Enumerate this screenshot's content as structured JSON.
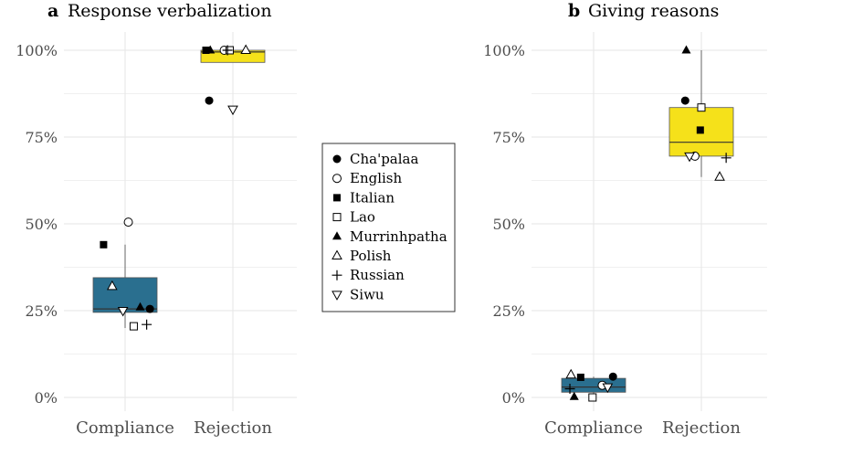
{
  "chart_data": [
    {
      "type": "box",
      "panel": "a",
      "title": "Response verbalization",
      "categories": [
        "Compliance",
        "Rejection"
      ],
      "y_ticks": [
        "0%",
        "25%",
        "50%",
        "75%",
        "100%"
      ],
      "ylim": [
        0,
        1
      ],
      "boxes": [
        {
          "category": "Compliance",
          "min": 0.2,
          "q1": 0.245,
          "median": 0.255,
          "q3": 0.345,
          "max": 0.44,
          "fill": "#2a6f8f"
        },
        {
          "category": "Rejection",
          "min": 0.965,
          "q1": 0.965,
          "median": 0.995,
          "q3": 1.0,
          "max": 1.0,
          "fill": "#f5e11a"
        }
      ],
      "points": [
        {
          "language": "Cha'palaa",
          "category": "Compliance",
          "jitter": 0.23,
          "value": 0.255
        },
        {
          "language": "English",
          "category": "Compliance",
          "jitter": 0.03,
          "value": 0.505
        },
        {
          "language": "Italian",
          "category": "Compliance",
          "jitter": -0.2,
          "value": 0.44
        },
        {
          "language": "Lao",
          "category": "Compliance",
          "jitter": 0.08,
          "value": 0.205
        },
        {
          "language": "Murrinhpatha",
          "category": "Compliance",
          "jitter": 0.14,
          "value": 0.26
        },
        {
          "language": "Polish",
          "category": "Compliance",
          "jitter": -0.12,
          "value": 0.32
        },
        {
          "language": "Russian",
          "category": "Compliance",
          "jitter": 0.2,
          "value": 0.21
        },
        {
          "language": "Siwu",
          "category": "Compliance",
          "jitter": -0.02,
          "value": 0.25
        },
        {
          "language": "Cha'palaa",
          "category": "Rejection",
          "jitter": -0.22,
          "value": 0.855
        },
        {
          "language": "English",
          "category": "Rejection",
          "jitter": -0.08,
          "value": 1.0
        },
        {
          "language": "Italian",
          "category": "Rejection",
          "jitter": -0.25,
          "value": 1.0
        },
        {
          "language": "Lao",
          "category": "Rejection",
          "jitter": -0.03,
          "value": 1.0
        },
        {
          "language": "Murrinhpatha",
          "category": "Rejection",
          "jitter": -0.21,
          "value": 1.0
        },
        {
          "language": "Polish",
          "category": "Rejection",
          "jitter": 0.12,
          "value": 1.0
        },
        {
          "language": "Russian",
          "category": "Rejection",
          "jitter": -0.05,
          "value": 1.0
        },
        {
          "language": "Siwu",
          "category": "Rejection",
          "jitter": 0.0,
          "value": 0.83
        }
      ]
    },
    {
      "type": "box",
      "panel": "b",
      "title": "Giving reasons",
      "categories": [
        "Compliance",
        "Rejection"
      ],
      "y_ticks": [
        "0%",
        "25%",
        "50%",
        "75%",
        "100%"
      ],
      "ylim": [
        0,
        1
      ],
      "boxes": [
        {
          "category": "Compliance",
          "min": 0.0,
          "q1": 0.015,
          "median": 0.03,
          "q3": 0.055,
          "max": 0.06,
          "fill": "#2a6f8f"
        },
        {
          "category": "Rejection",
          "min": 0.635,
          "q1": 0.695,
          "median": 0.735,
          "q3": 0.835,
          "max": 1.0,
          "fill": "#f5e11a"
        }
      ],
      "points": [
        {
          "language": "Cha'palaa",
          "category": "Compliance",
          "jitter": 0.18,
          "value": 0.06
        },
        {
          "language": "English",
          "category": "Compliance",
          "jitter": 0.08,
          "value": 0.035
        },
        {
          "language": "Italian",
          "category": "Compliance",
          "jitter": -0.12,
          "value": 0.058
        },
        {
          "language": "Lao",
          "category": "Compliance",
          "jitter": -0.01,
          "value": 0.0
        },
        {
          "language": "Murrinhpatha",
          "category": "Compliance",
          "jitter": -0.18,
          "value": 0.002
        },
        {
          "language": "Polish",
          "category": "Compliance",
          "jitter": -0.21,
          "value": 0.065
        },
        {
          "language": "Russian",
          "category": "Compliance",
          "jitter": -0.22,
          "value": 0.025
        },
        {
          "language": "Siwu",
          "category": "Compliance",
          "jitter": 0.13,
          "value": 0.03
        },
        {
          "language": "Cha'palaa",
          "category": "Rejection",
          "jitter": -0.15,
          "value": 0.855
        },
        {
          "language": "English",
          "category": "Rejection",
          "jitter": -0.06,
          "value": 0.695
        },
        {
          "language": "Italian",
          "category": "Rejection",
          "jitter": -0.01,
          "value": 0.77
        },
        {
          "language": "Lao",
          "category": "Rejection",
          "jitter": 0.0,
          "value": 0.835
        },
        {
          "language": "Murrinhpatha",
          "category": "Rejection",
          "jitter": -0.14,
          "value": 1.0
        },
        {
          "language": "Polish",
          "category": "Rejection",
          "jitter": 0.17,
          "value": 0.635
        },
        {
          "language": "Russian",
          "category": "Rejection",
          "jitter": 0.23,
          "value": 0.69
        },
        {
          "language": "Siwu",
          "category": "Rejection",
          "jitter": -0.11,
          "value": 0.695
        }
      ]
    }
  ],
  "legend": {
    "position": "center, between panels",
    "entries": [
      {
        "label": "Cha'palaa",
        "shape": "filled-circle"
      },
      {
        "label": "English",
        "shape": "open-circle"
      },
      {
        "label": "Italian",
        "shape": "filled-square"
      },
      {
        "label": "Lao",
        "shape": "open-square"
      },
      {
        "label": "Murrinhpatha",
        "shape": "filled-triangle"
      },
      {
        "label": "Polish",
        "shape": "open-triangle"
      },
      {
        "label": "Russian",
        "shape": "plus"
      },
      {
        "label": "Siwu",
        "shape": "open-down-triangle"
      }
    ]
  },
  "colors": {
    "compliance": "#2a6f8f",
    "rejection": "#f5e11a",
    "grid": "#e6e6e6"
  }
}
